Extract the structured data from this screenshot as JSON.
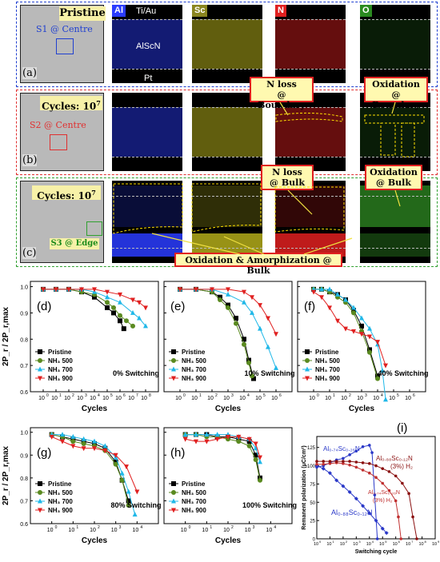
{
  "top_panel": {
    "panel_a": {
      "letter": "(a)",
      "state": "Pristine",
      "spot": "S1 @ Centre"
    },
    "panel_b": {
      "letter": "(b)",
      "state": "Cycles: 10",
      "state_exp": "7",
      "spot": "S2 @ Centre",
      "anno1": "N loss\n@ Boundary",
      "anno2": "Oxidation\n@ Boundary"
    },
    "panel_c": {
      "letter": "(c)",
      "state": "Cycles: 10",
      "state_exp": "7",
      "spot": "S3 @ Edge",
      "anno1": "N loss\n@ Bulk",
      "anno2": "Oxidation\n@ Bulk",
      "anno3": "Oxidation & Amorphization @ Bulk"
    },
    "elements": [
      "Al",
      "Sc",
      "N",
      "O"
    ],
    "layers": {
      "top": "Ti/Au",
      "middle": "AlScN",
      "bottom": "Pt"
    },
    "colors": {
      "Al": "#2a3cff",
      "Sc": "#d8d020",
      "N": "#e02020",
      "O": "#3fbf30",
      "frame_a": "#2040d0",
      "frame_b": "#e03030",
      "frame_c": "#30a030"
    }
  },
  "chart_data": [
    {
      "type": "line",
      "letter": "(d)",
      "annotation": "0% Switching",
      "xlabel": "Cycles",
      "ylabel": "2P_r / 2P_r,max",
      "ylim": [
        0.6,
        1.0
      ],
      "xticks": [
        "10^0",
        "10^1",
        "10^2",
        "10^3",
        "10^4",
        "10^5",
        "10^6",
        "10^7",
        "10^8"
      ],
      "yticks": [
        "0.6",
        "0.7",
        "0.8",
        "0.9",
        "1.0"
      ],
      "series": [
        {
          "name": "Pristine",
          "x": [
            0,
            1,
            2,
            3,
            4,
            5,
            5.5,
            6,
            6.3
          ],
          "y": [
            0.99,
            0.99,
            0.99,
            0.98,
            0.96,
            0.92,
            0.9,
            0.87,
            0.84
          ]
        },
        {
          "name": "NH₃ 500",
          "x": [
            0,
            1,
            2,
            3,
            4,
            5,
            5.5,
            6,
            6.5,
            7
          ],
          "y": [
            0.99,
            0.99,
            0.99,
            0.98,
            0.97,
            0.94,
            0.92,
            0.89,
            0.87,
            0.85
          ]
        },
        {
          "name": "NH₃ 700",
          "x": [
            0,
            1,
            2,
            3,
            4,
            5,
            6,
            7,
            7.5,
            8
          ],
          "y": [
            0.99,
            0.99,
            0.99,
            0.99,
            0.98,
            0.96,
            0.94,
            0.9,
            0.88,
            0.85
          ]
        },
        {
          "name": "NH₃ 900",
          "x": [
            0,
            1,
            2,
            3,
            4,
            5,
            6,
            7,
            7.5,
            8
          ],
          "y": [
            0.99,
            0.99,
            0.99,
            0.99,
            0.99,
            0.98,
            0.97,
            0.95,
            0.94,
            0.92
          ]
        }
      ]
    },
    {
      "type": "line",
      "letter": "(e)",
      "annotation": "10% Switching",
      "xlabel": "Cycles",
      "ylabel": "2P_r / 2P_r,max",
      "ylim": [
        0.6,
        1.0
      ],
      "xticks": [
        "10^0",
        "10^1",
        "10^2",
        "10^3",
        "10^4",
        "10^5",
        "10^6"
      ],
      "yticks": [
        "0.6",
        "0.7",
        "0.8",
        "0.9",
        "1.0"
      ],
      "series": [
        {
          "name": "Pristine",
          "x": [
            0,
            1,
            2,
            2.5,
            3,
            3.5,
            4,
            4.3,
            4.6
          ],
          "y": [
            0.99,
            0.99,
            0.98,
            0.96,
            0.93,
            0.88,
            0.8,
            0.72,
            0.65
          ]
        },
        {
          "name": "NH₃ 500",
          "x": [
            0,
            1,
            2,
            2.5,
            3,
            3.5,
            4,
            4.3,
            4.5
          ],
          "y": [
            0.99,
            0.99,
            0.98,
            0.95,
            0.92,
            0.86,
            0.78,
            0.71,
            0.66
          ]
        },
        {
          "name": "NH₃ 700",
          "x": [
            0,
            1,
            2,
            3,
            4,
            4.5,
            5,
            5.5,
            6
          ],
          "y": [
            0.99,
            0.99,
            0.99,
            0.97,
            0.94,
            0.9,
            0.84,
            0.77,
            0.69
          ]
        },
        {
          "name": "NH₃ 900",
          "x": [
            0,
            1,
            2,
            3,
            4,
            4.5,
            5,
            5.5,
            6
          ],
          "y": [
            0.99,
            0.99,
            0.99,
            0.99,
            0.98,
            0.96,
            0.93,
            0.88,
            0.82
          ]
        }
      ]
    },
    {
      "type": "line",
      "letter": "(f)",
      "annotation": "40% Switching",
      "xlabel": "Cycles",
      "ylabel": "2P_r / 2P_r,max",
      "ylim": [
        0.6,
        1.0
      ],
      "xticks": [
        "10^0",
        "10^1",
        "10^2",
        "10^3",
        "10^4",
        "10^5",
        "10^6"
      ],
      "yticks": [
        "0.6",
        "0.7",
        "0.8",
        "0.9",
        "1.0"
      ],
      "series": [
        {
          "name": "Pristine",
          "x": [
            0,
            0.5,
            1,
            1.5,
            2,
            2.5,
            3,
            3.5,
            4
          ],
          "y": [
            0.99,
            0.99,
            0.98,
            0.97,
            0.95,
            0.91,
            0.85,
            0.76,
            0.66
          ]
        },
        {
          "name": "NH₃ 500",
          "x": [
            0,
            0.5,
            1,
            1.5,
            2,
            2.5,
            3,
            3.5,
            4
          ],
          "y": [
            0.99,
            0.99,
            0.98,
            0.96,
            0.94,
            0.9,
            0.83,
            0.75,
            0.65
          ]
        },
        {
          "name": "NH₃ 700",
          "x": [
            0,
            0.5,
            1,
            1.5,
            2,
            2.5,
            3,
            3.5,
            4,
            4.3,
            4.5
          ],
          "y": [
            0.99,
            0.99,
            0.99,
            0.97,
            0.95,
            0.92,
            0.88,
            0.84,
            0.78,
            0.68,
            0.57
          ]
        },
        {
          "name": "NH₃ 900",
          "x": [
            0,
            0.5,
            1,
            1.5,
            2,
            2.5,
            3,
            3.5,
            4,
            4.5
          ],
          "y": [
            0.98,
            0.96,
            0.92,
            0.87,
            0.84,
            0.83,
            0.82,
            0.81,
            0.79,
            0.7
          ]
        }
      ]
    },
    {
      "type": "line",
      "letter": "(g)",
      "annotation": "80% Switching",
      "xlabel": "Cycles",
      "ylabel": "2P_r / 2P_r,max",
      "ylim": [
        0.6,
        1.0
      ],
      "xticks": [
        "10^0",
        "10^1",
        "10^2",
        "10^3",
        "10^4"
      ],
      "yticks": [
        "0.6",
        "0.7",
        "0.8",
        "0.9",
        "1.0"
      ],
      "series": [
        {
          "name": "Pristine",
          "x": [
            0,
            0.5,
            1,
            1.5,
            2,
            2.5,
            3,
            3.3,
            3.6
          ],
          "y": [
            0.99,
            0.98,
            0.97,
            0.96,
            0.95,
            0.93,
            0.87,
            0.79,
            0.7
          ]
        },
        {
          "name": "NH₃ 500",
          "x": [
            0,
            0.5,
            1,
            1.5,
            2,
            2.5,
            3,
            3.3,
            3.6
          ],
          "y": [
            0.99,
            0.98,
            0.96,
            0.95,
            0.94,
            0.92,
            0.86,
            0.79,
            0.68
          ]
        },
        {
          "name": "NH₃ 700",
          "x": [
            0,
            0.5,
            1,
            1.5,
            2,
            2.5,
            3,
            3.3,
            3.6,
            3.9
          ],
          "y": [
            0.99,
            0.99,
            0.98,
            0.97,
            0.96,
            0.94,
            0.89,
            0.82,
            0.74,
            0.64
          ]
        },
        {
          "name": "NH₃ 900",
          "x": [
            0,
            0.5,
            1,
            1.5,
            2,
            2.5,
            3,
            3.5,
            4
          ],
          "y": [
            0.98,
            0.96,
            0.94,
            0.93,
            0.93,
            0.92,
            0.9,
            0.85,
            0.74
          ]
        }
      ]
    },
    {
      "type": "line",
      "letter": "(h)",
      "annotation": "100% Switching",
      "xlabel": "Cycles",
      "ylabel": "2P_r / 2P_r,max",
      "ylim": [
        0.6,
        1.0
      ],
      "xticks": [
        "10^0",
        "10^1",
        "10^2",
        "10^3",
        "10^4"
      ],
      "yticks": [
        "0.6",
        "0.7",
        "0.8",
        "0.9",
        "1.0"
      ],
      "series": [
        {
          "name": "Pristine",
          "x": [
            0,
            0.5,
            1,
            1.5,
            2,
            2.5,
            3,
            3.3,
            3.5
          ],
          "y": [
            0.99,
            0.99,
            0.99,
            0.98,
            0.98,
            0.97,
            0.96,
            0.9,
            0.8
          ]
        },
        {
          "name": "NH₃ 500",
          "x": [
            0,
            0.5,
            1,
            1.5,
            2,
            2.5,
            3,
            3.3,
            3.5
          ],
          "y": [
            0.99,
            0.99,
            0.98,
            0.98,
            0.97,
            0.96,
            0.94,
            0.88,
            0.79
          ]
        },
        {
          "name": "NH₃ 700",
          "x": [
            0,
            0.5,
            1,
            1.5,
            2,
            2.5,
            3,
            3.3,
            3.5
          ],
          "y": [
            0.99,
            0.99,
            0.99,
            0.99,
            0.99,
            0.98,
            0.97,
            0.93,
            0.87
          ]
        },
        {
          "name": "NH₃ 900",
          "x": [
            0,
            0.5,
            1,
            1.5,
            2,
            2.5,
            3,
            3.3,
            3.5
          ],
          "y": [
            0.97,
            0.96,
            0.96,
            0.97,
            0.98,
            0.98,
            0.97,
            0.95,
            0.89
          ]
        }
      ]
    },
    {
      "type": "line",
      "letter": "(i)",
      "xlabel": "Switching cycle",
      "ylabel": "Remanent polarization (μC/cm²)",
      "ylim": [
        0,
        140
      ],
      "xticks": [
        "10^0",
        "10^1",
        "10^2",
        "10^3",
        "10^4",
        "10^5",
        "10^6",
        "10^7",
        "10^8",
        "10^9"
      ],
      "yticks": [
        "0",
        "25",
        "50",
        "75",
        "100",
        "125"
      ],
      "labels": {
        "a1": "Al₀.₇₄Sc₀.₂₆N",
        "a2": "Al₀.₈₈Sc₀.₁₂N",
        "a3": "(3%) H₂",
        "a4": "Al₀.₇₄Sc₀.₂₆N",
        "a5": "(3%) H₂",
        "a6": "Al₀.₈₈Sc₀.₁₂N"
      },
      "series": [
        {
          "name": "Al0.74Sc0.26N",
          "x": [
            0,
            0.5,
            1,
            1.5,
            2,
            2.5,
            3,
            3.5,
            4,
            4.2,
            4.4,
            4.6
          ],
          "y": [
            98,
            100,
            104,
            108,
            110,
            115,
            120,
            126,
            128,
            118,
            60,
            0
          ]
        },
        {
          "name": "Al0.88Sc0.12N",
          "x": [
            0,
            0.5,
            1,
            1.5,
            2,
            2.5,
            3,
            3.5,
            4,
            4.5,
            5,
            5.3
          ],
          "y": [
            100,
            96,
            90,
            80,
            72,
            64,
            55,
            45,
            35,
            25,
            14,
            8
          ]
        },
        {
          "name": "Al0.74Sc0.26N (3%) H2",
          "x": [
            0,
            0.5,
            1,
            1.5,
            2,
            2.5,
            3,
            3.5,
            4,
            4.5,
            5,
            5.5,
            6,
            6.2,
            6.4
          ],
          "y": [
            102,
            102,
            103,
            104,
            103,
            101,
            98,
            94,
            90,
            84,
            76,
            66,
            52,
            30,
            0
          ]
        },
        {
          "name": "Al0.88Sc0.12N (3%) H2",
          "x": [
            0,
            0.5,
            1,
            1.5,
            2,
            2.5,
            3,
            3.5,
            4,
            4.5,
            5,
            5.5,
            6,
            6.5,
            7,
            7.3,
            7.6
          ],
          "y": [
            106,
            106,
            106,
            106,
            106,
            106,
            105,
            104,
            103,
            100,
            96,
            92,
            86,
            76,
            62,
            30,
            0
          ]
        }
      ]
    }
  ]
}
